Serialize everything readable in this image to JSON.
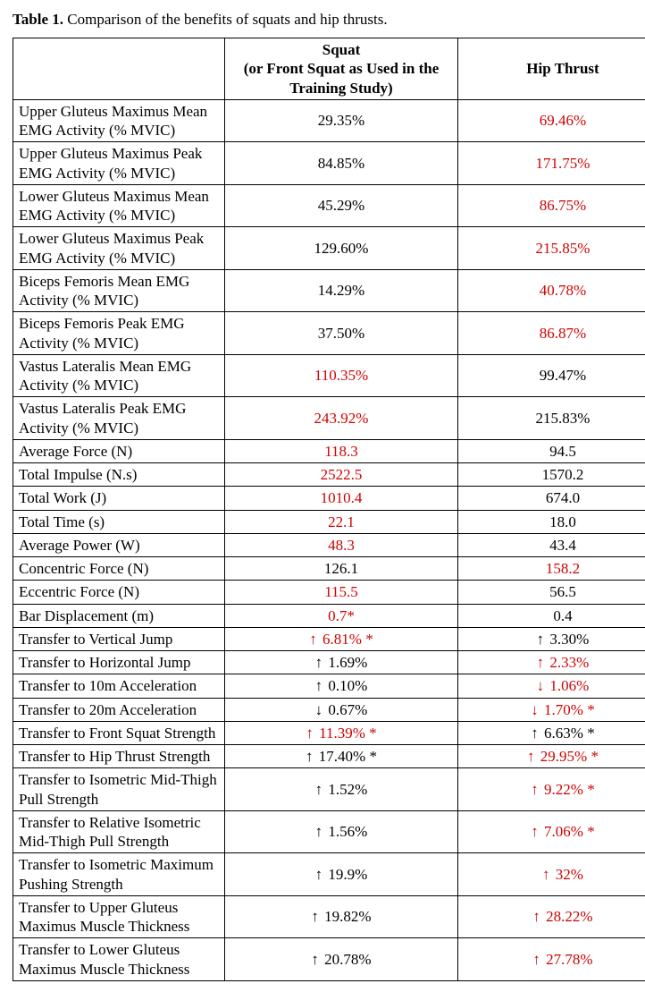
{
  "caption": {
    "lead": "Table 1.",
    "rest": " Comparison of the benefits of squats and hip thrusts."
  },
  "headers": {
    "blank": "",
    "squat": "Squat\n(or Front Squat as Used in the Training Study)",
    "hip": "Hip Thrust"
  },
  "colors": {
    "highlight": "#cc0302",
    "normal": "#000000"
  },
  "rows": [
    {
      "label": "Upper Gluteus Maximus Mean EMG Activity (% MVIC)",
      "squat": {
        "text": "29.35%",
        "hl": false
      },
      "hip": {
        "text": "69.46%",
        "hl": true
      }
    },
    {
      "label": "Upper Gluteus Maximus Peak EMG Activity (% MVIC)",
      "squat": {
        "text": "84.85%",
        "hl": false
      },
      "hip": {
        "text": "171.75%",
        "hl": true
      }
    },
    {
      "label": "Lower Gluteus Maximus Mean EMG Activity (% MVIC)",
      "squat": {
        "text": "45.29%",
        "hl": false
      },
      "hip": {
        "text": "86.75%",
        "hl": true
      }
    },
    {
      "label": "Lower Gluteus Maximus Peak EMG Activity (% MVIC)",
      "squat": {
        "text": "129.60%",
        "hl": false
      },
      "hip": {
        "text": "215.85%",
        "hl": true
      }
    },
    {
      "label": "Biceps Femoris Mean EMG Activity (% MVIC)",
      "squat": {
        "text": "14.29%",
        "hl": false
      },
      "hip": {
        "text": "40.78%",
        "hl": true
      }
    },
    {
      "label": "Biceps Femoris Peak EMG Activity (% MVIC)",
      "squat": {
        "text": "37.50%",
        "hl": false
      },
      "hip": {
        "text": "86.87%",
        "hl": true
      }
    },
    {
      "label": "Vastus Lateralis Mean EMG Activity (% MVIC)",
      "squat": {
        "text": "110.35%",
        "hl": true
      },
      "hip": {
        "text": "99.47%",
        "hl": false
      }
    },
    {
      "label": "Vastus Lateralis Peak EMG Activity (% MVIC)",
      "squat": {
        "text": "243.92%",
        "hl": true
      },
      "hip": {
        "text": "215.83%",
        "hl": false
      }
    },
    {
      "label": "Average Force (N)",
      "squat": {
        "text": "118.3",
        "hl": true
      },
      "hip": {
        "text": "94.5",
        "hl": false
      }
    },
    {
      "label": "Total Impulse (N.s)",
      "squat": {
        "text": "2522.5",
        "hl": true
      },
      "hip": {
        "text": "1570.2",
        "hl": false
      }
    },
    {
      "label": "Total Work (J)",
      "squat": {
        "text": "1010.4",
        "hl": true
      },
      "hip": {
        "text": "674.0",
        "hl": false
      }
    },
    {
      "label": "Total Time (s)",
      "squat": {
        "text": "22.1",
        "hl": true
      },
      "hip": {
        "text": "18.0",
        "hl": false
      }
    },
    {
      "label": "Average Power (W)",
      "squat": {
        "text": "48.3",
        "hl": true
      },
      "hip": {
        "text": "43.4",
        "hl": false
      }
    },
    {
      "label": "Concentric Force (N)",
      "squat": {
        "text": "126.1",
        "hl": false
      },
      "hip": {
        "text": "158.2",
        "hl": true
      }
    },
    {
      "label": "Eccentric Force (N)",
      "squat": {
        "text": "115.5",
        "hl": true
      },
      "hip": {
        "text": "56.5",
        "hl": false
      }
    },
    {
      "label": "Bar Displacement (m)",
      "squat": {
        "text": "0.7*",
        "hl": true
      },
      "hip": {
        "text": "0.4",
        "hl": false
      }
    },
    {
      "label": "Transfer to Vertical Jump",
      "squat": {
        "arrow": "up",
        "text": "6.81% *",
        "hl": true
      },
      "hip": {
        "arrow": "up",
        "text": "3.30%",
        "hl": false
      }
    },
    {
      "label": "Transfer to Horizontal Jump",
      "squat": {
        "arrow": "up",
        "text": "1.69%",
        "hl": false
      },
      "hip": {
        "arrow": "up",
        "text": "2.33%",
        "hl": true
      }
    },
    {
      "label": "Transfer to 10m Acceleration",
      "squat": {
        "arrow": "up",
        "text": "0.10%",
        "hl": false
      },
      "hip": {
        "arrow": "down",
        "text": "1.06%",
        "hl": true
      }
    },
    {
      "label": "Transfer to 20m Acceleration",
      "squat": {
        "arrow": "down",
        "text": "0.67%",
        "hl": false
      },
      "hip": {
        "arrow": "down",
        "text": "1.70% *",
        "hl": true
      }
    },
    {
      "label": "Transfer to Front Squat Strength",
      "squat": {
        "arrow": "up",
        "text": "11.39% *",
        "hl": true
      },
      "hip": {
        "arrow": "up",
        "text": "6.63% *",
        "hl": false
      }
    },
    {
      "label": "Transfer to Hip Thrust Strength",
      "squat": {
        "arrow": "up",
        "text": "17.40% *",
        "hl": false
      },
      "hip": {
        "arrow": "up",
        "text": "29.95% *",
        "hl": true
      }
    },
    {
      "label": "Transfer to Isometric Mid-Thigh Pull Strength",
      "squat": {
        "arrow": "up",
        "text": "1.52%",
        "hl": false
      },
      "hip": {
        "arrow": "up",
        "text": "9.22% *",
        "hl": true
      }
    },
    {
      "label": "Transfer to Relative Isometric Mid-Thigh Pull Strength",
      "squat": {
        "arrow": "up",
        "text": "1.56%",
        "hl": false
      },
      "hip": {
        "arrow": "up",
        "text": "7.06% *",
        "hl": true
      }
    },
    {
      "label": "Transfer to Isometric Maximum Pushing Strength",
      "squat": {
        "arrow": "up",
        "text": "19.9%",
        "hl": false
      },
      "hip": {
        "arrow": "up",
        "text": "32%",
        "hl": true
      }
    },
    {
      "label": "Transfer to Upper Gluteus Maximus Muscle Thickness",
      "squat": {
        "arrow": "up",
        "text": "19.82%",
        "hl": false
      },
      "hip": {
        "arrow": "up",
        "text": "28.22%",
        "hl": true
      }
    },
    {
      "label": "Transfer to Lower Gluteus Maximus Muscle Thickness",
      "squat": {
        "arrow": "up",
        "text": "20.78%",
        "hl": false
      },
      "hip": {
        "arrow": "up",
        "text": "27.78%",
        "hl": true
      }
    }
  ]
}
